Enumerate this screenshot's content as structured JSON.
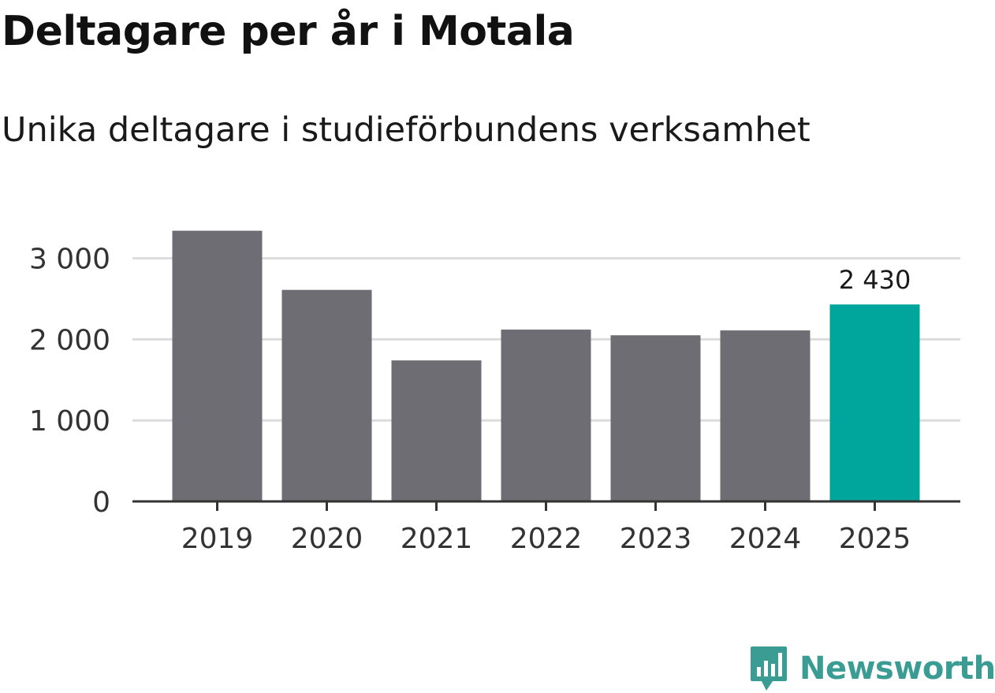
{
  "title": "Deltagare per år i Motala",
  "subtitle": "Unika deltagare i studieförbundens verksamhet",
  "brand": "Newsworthy",
  "brand_icon": "newsworthy-logo-icon",
  "colors": {
    "bar": "#6e6d73",
    "highlight": "#00a59b",
    "grid": "#dcdcdc",
    "axis": "#333333",
    "brand": "#3b9c94"
  },
  "chart_data": {
    "type": "bar",
    "categories": [
      "2019",
      "2020",
      "2021",
      "2022",
      "2023",
      "2024",
      "2025"
    ],
    "values": [
      3340,
      2610,
      1740,
      2120,
      2050,
      2110,
      2430
    ],
    "highlight_index": 6,
    "annotations": [
      {
        "category": "2025",
        "label": "2 430"
      }
    ],
    "ylim": [
      0,
      3400
    ],
    "yticks": [
      0,
      1000,
      2000,
      3000
    ],
    "ytick_labels": [
      "0",
      "1 000",
      "2 000",
      "3 000"
    ],
    "xlabel": "",
    "ylabel": "",
    "grid": true
  }
}
